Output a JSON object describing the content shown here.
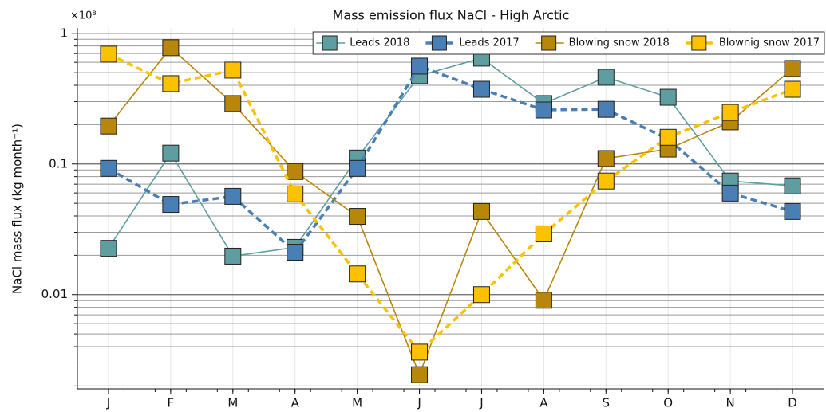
{
  "chart_data": {
    "type": "line",
    "title": "Mass emission flux NaCl - High Arctic",
    "y_scale_label": "×10⁸",
    "y_label": "NaCl mass flux (kg month⁻¹)",
    "categories": [
      "J",
      "F",
      "M",
      "A",
      "M",
      "J",
      "J",
      "A",
      "S",
      "O",
      "N",
      "D"
    ],
    "y_log": true,
    "ylim": [
      0.0019,
      1.1
    ],
    "yticks": [
      0.01,
      0.1,
      1
    ],
    "yminor_ticks": [
      0.002,
      0.003,
      0.004,
      0.005,
      0.006,
      0.007,
      0.008,
      0.009,
      0.02,
      0.03,
      0.04,
      0.05,
      0.06,
      0.07,
      0.08,
      0.09,
      0.2,
      0.3,
      0.4,
      0.5,
      0.6,
      0.7,
      0.8,
      0.9
    ],
    "grid": true,
    "legend": "top-right",
    "series": [
      {
        "name": "Leads 2018",
        "color": "#5f9ea0",
        "linestyle": "solid",
        "values": [
          0.0226,
          0.121,
          0.0197,
          0.023,
          0.111,
          0.474,
          0.646,
          0.29,
          0.461,
          0.324,
          0.074,
          0.068
        ]
      },
      {
        "name": "Leads 2017",
        "color": "#4a7fb5",
        "linestyle": "dashed",
        "values": [
          0.0925,
          0.049,
          0.0565,
          0.0211,
          0.0925,
          0.561,
          0.373,
          0.259,
          0.262,
          0.155,
          0.0598,
          0.0433
        ]
      },
      {
        "name": "Blowing snow 2018",
        "color": "#b8860b",
        "linestyle": "solid",
        "values": [
          0.195,
          0.776,
          0.29,
          0.0875,
          0.0397,
          0.00244,
          0.0433,
          0.00906,
          0.11,
          0.13,
          0.21,
          0.538
        ]
      },
      {
        "name": "Blownig snow 2017",
        "color": "#fcc200",
        "linestyle": "dashed",
        "values": [
          0.693,
          0.412,
          0.523,
          0.059,
          0.0144,
          0.00363,
          0.01,
          0.0292,
          0.074,
          0.16,
          0.248,
          0.373
        ]
      }
    ]
  }
}
